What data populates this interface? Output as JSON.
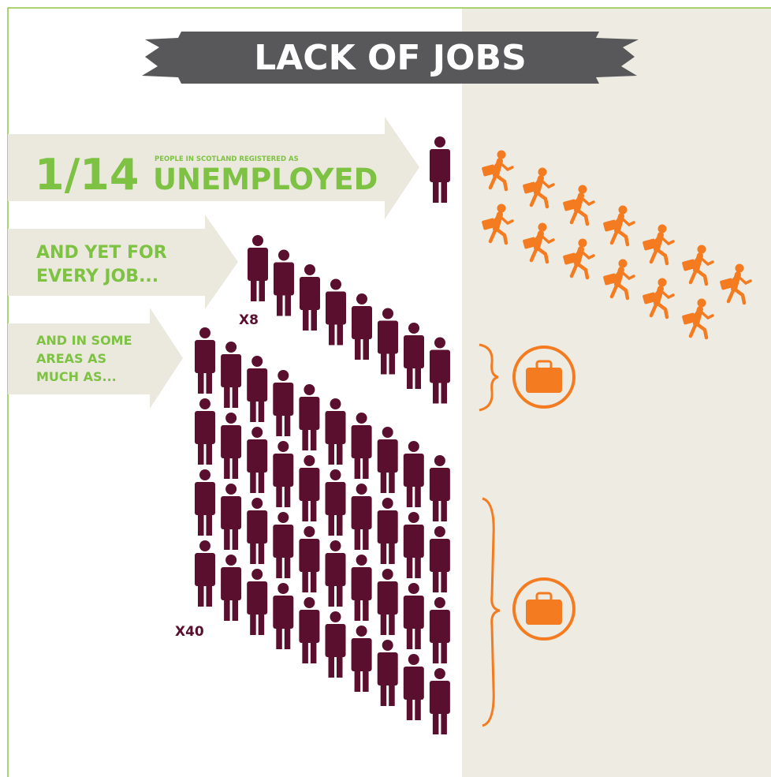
{
  "header": {
    "title": "LACK OF JOBS"
  },
  "statistic": {
    "fraction": "1/14",
    "caption": "PEOPLE IN SCOTLAND REGISTERED AS",
    "status": "UNEMPLOYED"
  },
  "every_job": {
    "lines": [
      "AND YET FOR",
      "EVERY JOB..."
    ],
    "multiplier": "X8"
  },
  "some_areas": {
    "lines": [
      "AND IN SOME",
      "AREAS AS",
      "MUCH AS..."
    ],
    "multiplier": "X40"
  }
}
